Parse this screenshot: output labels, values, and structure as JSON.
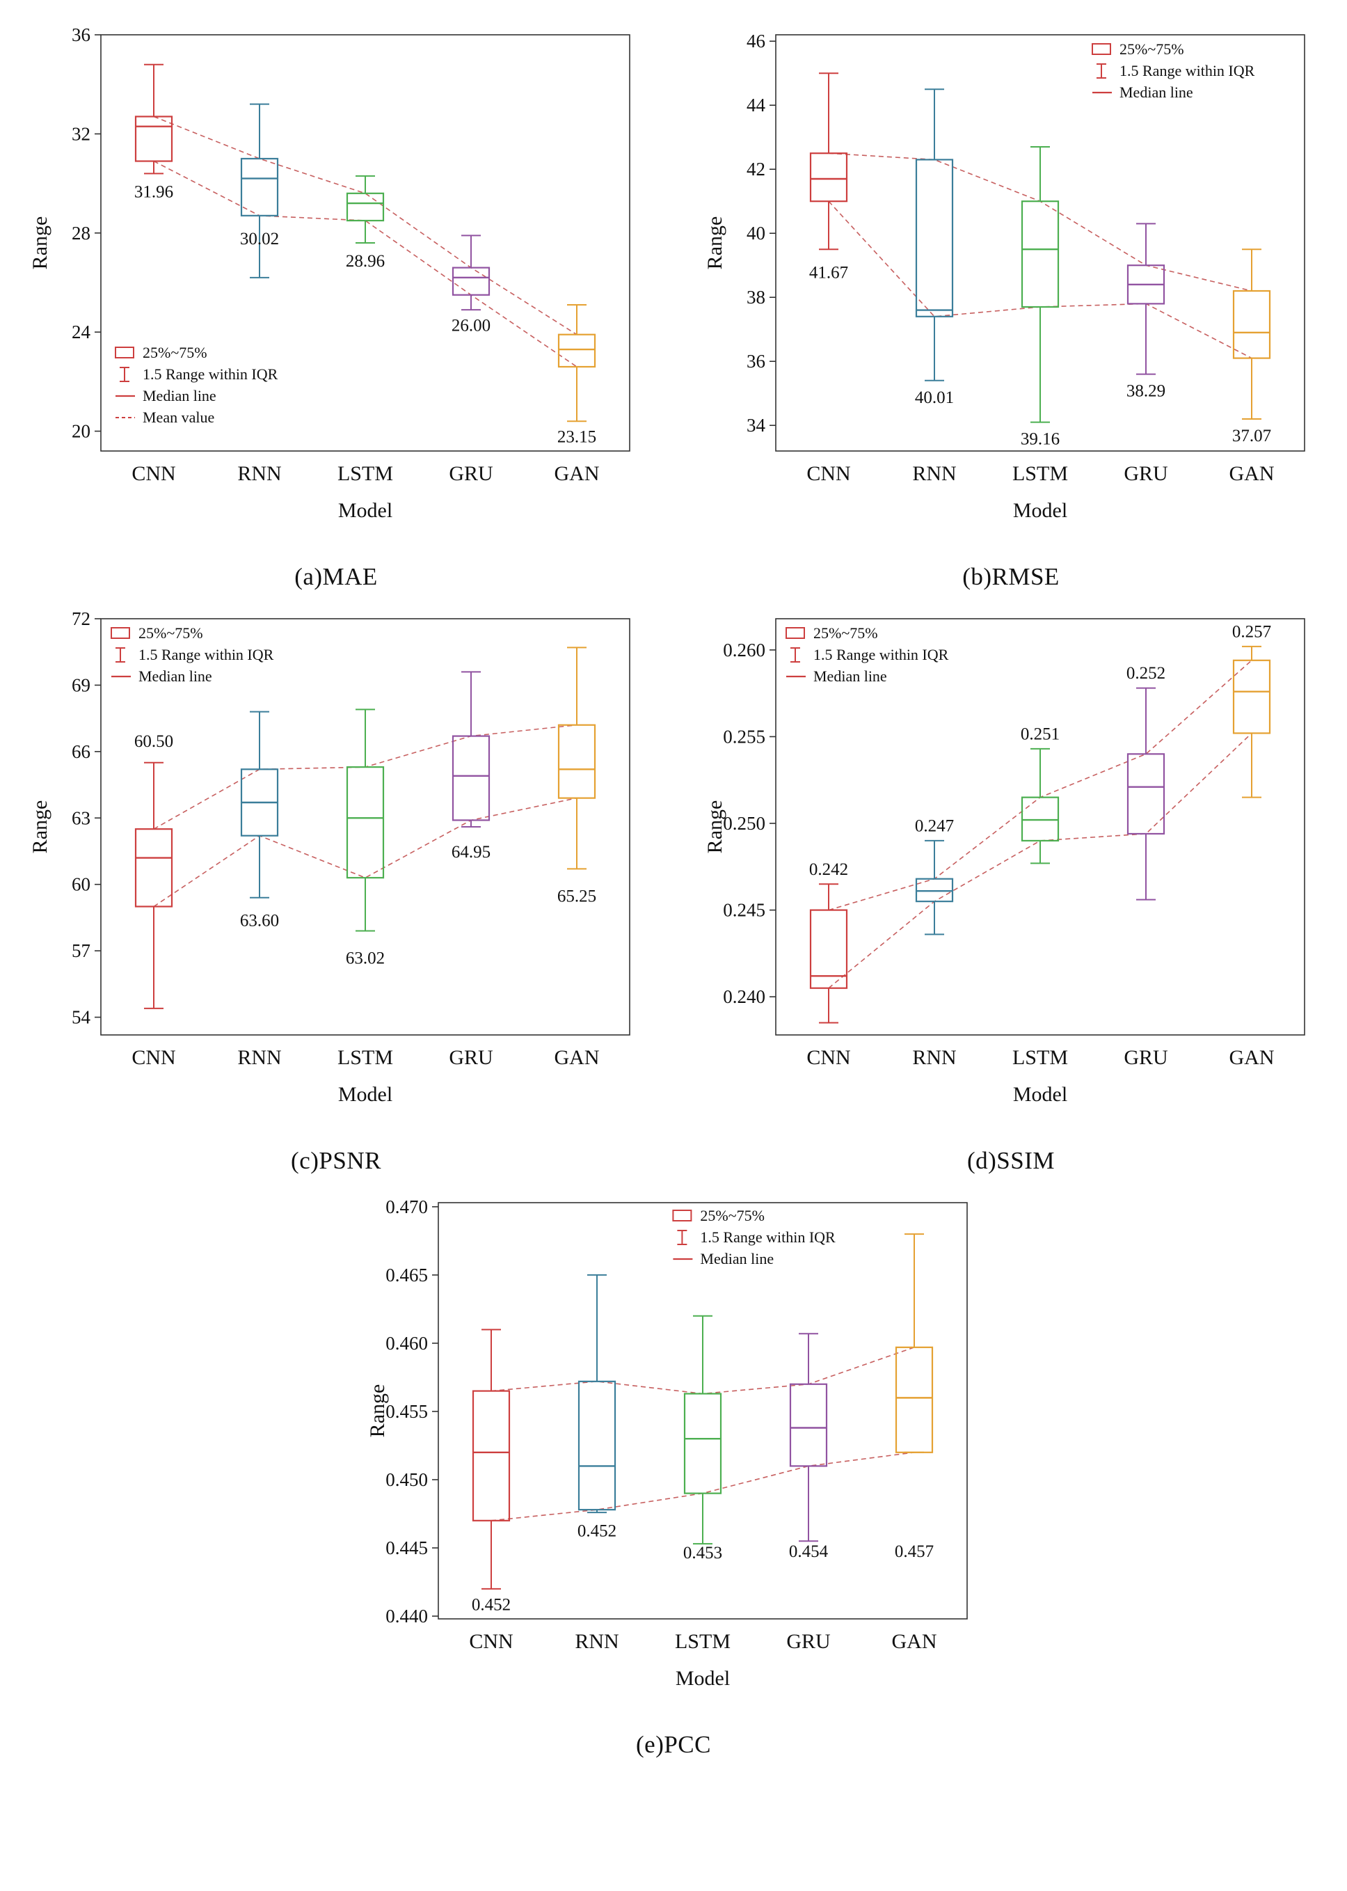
{
  "colors": {
    "series": [
      "#cd3f3f",
      "#3b7e9a",
      "#4caf50",
      "#9153a1",
      "#e5a132"
    ],
    "dashed": "#c75f5f",
    "legend": "#cd3f3f",
    "axis": "#333333",
    "text": "#111111"
  },
  "categories": [
    "CNN",
    "RNN",
    "LSTM",
    "GRU",
    "GAN"
  ],
  "chart_data": [
    {
      "id": "a",
      "type": "box",
      "caption": "(a)MAE",
      "ylabel": "Range",
      "xlabel": "Model",
      "ylim": [
        19.2,
        36.0
      ],
      "yticks": [
        20,
        24,
        28,
        32,
        36
      ],
      "ytick_labels": [
        "20",
        "24",
        "28",
        "32",
        "36"
      ],
      "legend": {
        "position": "bottom-left",
        "items": [
          "25%~75%",
          "1.5 Range within IQR",
          "Median line",
          "Mean value"
        ]
      },
      "boxes": [
        {
          "model": "CNN",
          "low": 30.4,
          "q1": 30.9,
          "median": 32.3,
          "q3": 32.7,
          "high": 34.8,
          "mean": 31.96,
          "label": "31.96",
          "label_y": 29.7
        },
        {
          "model": "RNN",
          "low": 26.2,
          "q1": 28.7,
          "median": 30.2,
          "q3": 31.0,
          "high": 33.2,
          "mean": 30.02,
          "label": "30.02",
          "label_y": 27.8
        },
        {
          "model": "LSTM",
          "low": 27.6,
          "q1": 28.5,
          "median": 29.2,
          "q3": 29.6,
          "high": 30.3,
          "mean": 28.96,
          "label": "28.96",
          "label_y": 26.9
        },
        {
          "model": "GRU",
          "low": 24.9,
          "q1": 25.5,
          "median": 26.2,
          "q3": 26.6,
          "high": 27.9,
          "mean": 26.0,
          "label": "26.00",
          "label_y": 24.3
        },
        {
          "model": "GAN",
          "low": 20.4,
          "q1": 22.6,
          "median": 23.3,
          "q3": 23.9,
          "high": 25.1,
          "mean": 23.15,
          "label": "23.15",
          "label_y": 19.8
        }
      ]
    },
    {
      "id": "b",
      "type": "box",
      "caption": "(b)RMSE",
      "ylabel": "Range",
      "xlabel": "Model",
      "ylim": [
        33.2,
        46.2
      ],
      "yticks": [
        34,
        36,
        38,
        40,
        42,
        44,
        46
      ],
      "ytick_labels": [
        "34",
        "36",
        "38",
        "40",
        "42",
        "44",
        "46"
      ],
      "legend": {
        "position": "top-right",
        "items": [
          "25%~75%",
          "1.5 Range within IQR",
          "Median line"
        ]
      },
      "boxes": [
        {
          "model": "CNN",
          "low": 39.5,
          "q1": 41.0,
          "median": 41.7,
          "q3": 42.5,
          "high": 45.0,
          "mean": 41.67,
          "label": "41.67",
          "label_y": 38.8
        },
        {
          "model": "RNN",
          "low": 35.4,
          "q1": 37.4,
          "median": 37.6,
          "q3": 42.3,
          "high": 44.5,
          "mean": 40.01,
          "label": "40.01",
          "label_y": 34.9
        },
        {
          "model": "LSTM",
          "low": 34.1,
          "q1": 37.7,
          "median": 39.5,
          "q3": 41.0,
          "high": 42.7,
          "mean": 39.16,
          "label": "39.16",
          "label_y": 33.6
        },
        {
          "model": "GRU",
          "low": 35.6,
          "q1": 37.8,
          "median": 38.4,
          "q3": 39.0,
          "high": 40.3,
          "mean": 38.29,
          "label": "38.29",
          "label_y": 35.1
        },
        {
          "model": "GAN",
          "low": 34.2,
          "q1": 36.1,
          "median": 36.9,
          "q3": 38.2,
          "high": 39.5,
          "mean": 37.07,
          "label": "37.07",
          "label_y": 33.7
        }
      ]
    },
    {
      "id": "c",
      "type": "box",
      "caption": "(c)PSNR",
      "ylabel": "Range",
      "xlabel": "Model",
      "ylim": [
        53.2,
        72.0
      ],
      "yticks": [
        54,
        57,
        60,
        63,
        66,
        69,
        72
      ],
      "ytick_labels": [
        "54",
        "57",
        "60",
        "63",
        "66",
        "69",
        "72"
      ],
      "legend": {
        "position": "top-left",
        "items": [
          "25%~75%",
          "1.5 Range within IQR",
          "Median line"
        ]
      },
      "boxes": [
        {
          "model": "CNN",
          "low": 54.4,
          "q1": 59.0,
          "median": 61.2,
          "q3": 62.5,
          "high": 65.5,
          "mean": 60.5,
          "label": "60.50",
          "label_y": 66.5
        },
        {
          "model": "RNN",
          "low": 59.4,
          "q1": 62.2,
          "median": 63.7,
          "q3": 65.2,
          "high": 67.8,
          "mean": 63.6,
          "label": "63.60",
          "label_y": 58.4
        },
        {
          "model": "LSTM",
          "low": 57.9,
          "q1": 60.3,
          "median": 63.0,
          "q3": 65.3,
          "high": 67.9,
          "mean": 63.02,
          "label": "63.02",
          "label_y": 56.7
        },
        {
          "model": "GRU",
          "low": 62.6,
          "q1": 62.9,
          "median": 64.9,
          "q3": 66.7,
          "high": 69.6,
          "mean": 64.95,
          "label": "64.95",
          "label_y": 61.5
        },
        {
          "model": "GAN",
          "low": 60.7,
          "q1": 63.9,
          "median": 65.2,
          "q3": 67.2,
          "high": 70.7,
          "mean": 65.25,
          "label": "65.25",
          "label_y": 59.5
        }
      ]
    },
    {
      "id": "d",
      "type": "box",
      "caption": "(d)SSIM",
      "ylabel": "Range",
      "xlabel": "Model",
      "ylim": [
        0.2378,
        0.2618
      ],
      "yticks": [
        0.24,
        0.245,
        0.25,
        0.255,
        0.26
      ],
      "ytick_labels": [
        "0.240",
        "0.245",
        "0.250",
        "0.255",
        "0.260"
      ],
      "legend": {
        "position": "top-left",
        "items": [
          "25%~75%",
          "1.5 Range within IQR",
          "Median line"
        ]
      },
      "boxes": [
        {
          "model": "CNN",
          "low": 0.2385,
          "q1": 0.2405,
          "median": 0.2412,
          "q3": 0.245,
          "high": 0.2465,
          "mean": 0.242,
          "label": "0.242",
          "label_y": 0.2474
        },
        {
          "model": "RNN",
          "low": 0.2436,
          "q1": 0.2455,
          "median": 0.2461,
          "q3": 0.2468,
          "high": 0.249,
          "mean": 0.247,
          "label": "0.247",
          "label_y": 0.2499
        },
        {
          "model": "LSTM",
          "low": 0.2477,
          "q1": 0.249,
          "median": 0.2502,
          "q3": 0.2515,
          "high": 0.2543,
          "mean": 0.251,
          "label": "0.251",
          "label_y": 0.2552
        },
        {
          "model": "GRU",
          "low": 0.2456,
          "q1": 0.2494,
          "median": 0.2521,
          "q3": 0.254,
          "high": 0.2578,
          "mean": 0.252,
          "label": "0.252",
          "label_y": 0.2587
        },
        {
          "model": "GAN",
          "low": 0.2515,
          "q1": 0.2552,
          "median": 0.2576,
          "q3": 0.2594,
          "high": 0.2602,
          "mean": 0.257,
          "label": "0.257",
          "label_y": 0.2611
        }
      ]
    },
    {
      "id": "e",
      "type": "box",
      "caption": "(e)PCC",
      "ylabel": "Range",
      "xlabel": "Model",
      "ylim": [
        0.4398,
        0.4703
      ],
      "yticks": [
        0.44,
        0.445,
        0.45,
        0.455,
        0.46,
        0.465,
        0.47
      ],
      "ytick_labels": [
        "0.440",
        "0.445",
        "0.450",
        "0.455",
        "0.460",
        "0.465",
        "0.470"
      ],
      "legend": {
        "position": "top-center",
        "items": [
          "25%~75%",
          "1.5 Range within IQR",
          "Median line"
        ]
      },
      "boxes": [
        {
          "model": "CNN",
          "low": 0.442,
          "q1": 0.447,
          "median": 0.452,
          "q3": 0.4565,
          "high": 0.461,
          "mean": 0.452,
          "label": "0.452",
          "label_y": 0.4409
        },
        {
          "model": "RNN",
          "low": 0.4476,
          "q1": 0.4478,
          "median": 0.451,
          "q3": 0.4572,
          "high": 0.465,
          "mean": 0.452,
          "label": "0.452",
          "label_y": 0.4463
        },
        {
          "model": "LSTM",
          "low": 0.4453,
          "q1": 0.449,
          "median": 0.453,
          "q3": 0.4563,
          "high": 0.462,
          "mean": 0.453,
          "label": "0.453",
          "label_y": 0.4447
        },
        {
          "model": "GRU",
          "low": 0.4455,
          "q1": 0.451,
          "median": 0.4538,
          "q3": 0.457,
          "high": 0.4607,
          "mean": 0.454,
          "label": "0.454",
          "label_y": 0.4448
        },
        {
          "model": "GAN",
          "low": 0.452,
          "q1": 0.452,
          "median": 0.456,
          "q3": 0.4597,
          "high": 0.468,
          "mean": 0.457,
          "label": "0.457",
          "label_y": 0.4448
        }
      ]
    }
  ]
}
